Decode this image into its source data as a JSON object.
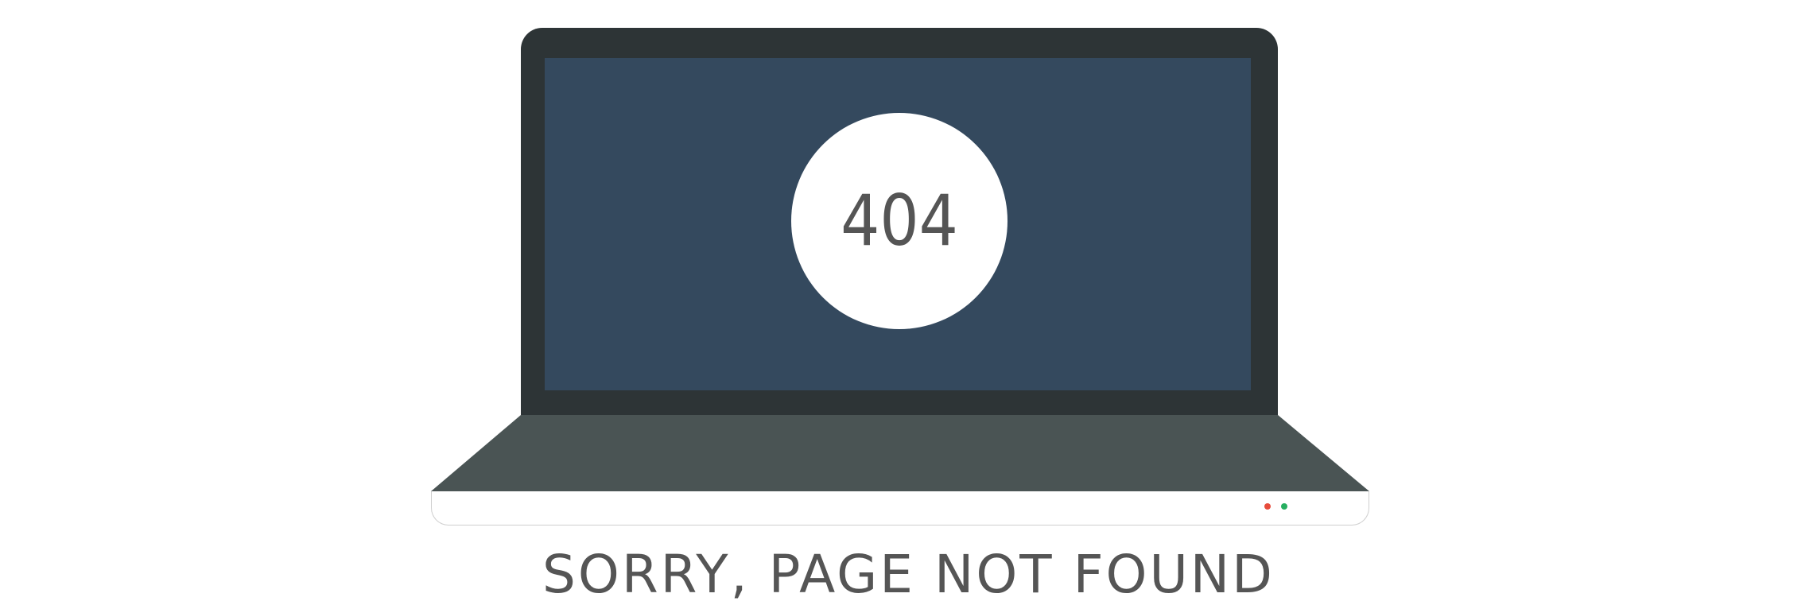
{
  "error": {
    "code": "404",
    "message": "SORRY, PAGE NOT FOUND"
  },
  "colors": {
    "lid": "#2d3436",
    "screen": "#34495e",
    "deck": "#4a5454",
    "text": "#555555",
    "led_red": "#e74c3c",
    "led_green": "#27ae60"
  },
  "icons": {
    "laptop": "laptop-illustration"
  }
}
